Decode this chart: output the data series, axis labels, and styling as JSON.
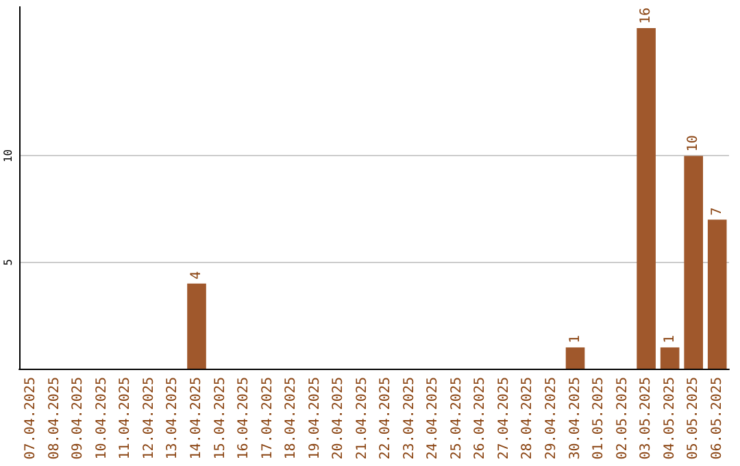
{
  "chart_data": {
    "type": "bar",
    "categories": [
      "07.04.2025",
      "08.04.2025",
      "09.04.2025",
      "10.04.2025",
      "11.04.2025",
      "12.04.2025",
      "13.04.2025",
      "14.04.2025",
      "15.04.2025",
      "16.04.2025",
      "17.04.2025",
      "18.04.2025",
      "19.04.2025",
      "20.04.2025",
      "21.04.2025",
      "22.04.2025",
      "23.04.2025",
      "24.04.2025",
      "25.04.2025",
      "26.04.2025",
      "27.04.2025",
      "28.04.2025",
      "29.04.2025",
      "30.04.2025",
      "01.05.2025",
      "02.05.2025",
      "03.05.2025",
      "04.05.2025",
      "05.05.2025",
      "06.05.2025"
    ],
    "values": [
      0,
      0,
      0,
      0,
      0,
      0,
      0,
      4,
      0,
      0,
      0,
      0,
      0,
      0,
      0,
      0,
      0,
      0,
      0,
      0,
      0,
      0,
      0,
      1,
      0,
      0,
      16,
      1,
      10,
      7
    ],
    "value_labels": [
      null,
      null,
      null,
      null,
      null,
      null,
      null,
      "4",
      null,
      null,
      null,
      null,
      null,
      null,
      null,
      null,
      null,
      null,
      null,
      null,
      null,
      null,
      null,
      "1",
      null,
      null,
      "16",
      "1",
      "10",
      "7"
    ],
    "color": "#a0582c",
    "ylim": [
      0,
      17
    ],
    "yticks": [
      5,
      10
    ],
    "grid": "y"
  }
}
